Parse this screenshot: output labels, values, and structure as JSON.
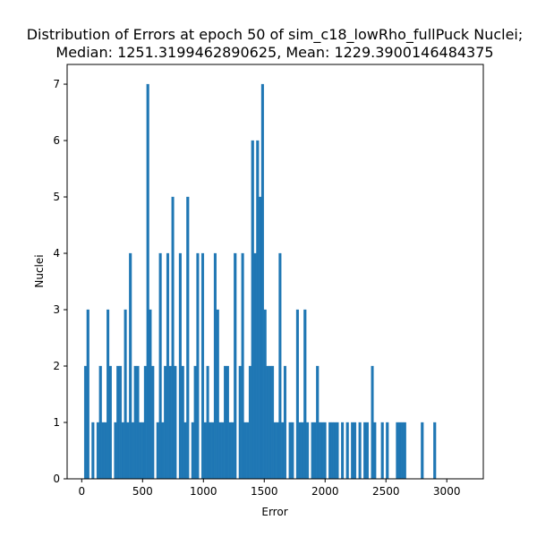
{
  "chart_data": {
    "type": "bar",
    "title_lines": [
      "Distribution of Errors at epoch 50 of sim_c18_lowRho_fullPuck Nuclei;",
      "Median: 1251.3199462890625, Mean: 1229.3900146484375"
    ],
    "xlabel": "Error",
    "ylabel": "Nuclei",
    "xlim": [
      -120,
      3300
    ],
    "ylim": [
      0,
      7.35
    ],
    "x_ticks": [
      0,
      500,
      1000,
      1500,
      2000,
      2500,
      3000
    ],
    "y_ticks": [
      0,
      1,
      2,
      3,
      4,
      5,
      6,
      7
    ],
    "bar_color": "#1f77b4",
    "bin_start": 0,
    "bin_width": 20.5,
    "counts": [
      0,
      2,
      3,
      0,
      1,
      0,
      1,
      2,
      1,
      1,
      3,
      2,
      0,
      1,
      2,
      2,
      1,
      3,
      1,
      4,
      1,
      2,
      2,
      1,
      1,
      2,
      7,
      3,
      2,
      0,
      1,
      4,
      1,
      2,
      4,
      2,
      5,
      2,
      0,
      4,
      2,
      1,
      5,
      0,
      1,
      2,
      4,
      0,
      4,
      1,
      2,
      1,
      1,
      4,
      3,
      1,
      1,
      2,
      2,
      1,
      1,
      4,
      0,
      2,
      4,
      1,
      1,
      2,
      6,
      4,
      6,
      5,
      7,
      3,
      2,
      2,
      2,
      1,
      1,
      4,
      1,
      2,
      0,
      1,
      1,
      0,
      3,
      1,
      1,
      3,
      1,
      0,
      1,
      1,
      2,
      1,
      1,
      1,
      0,
      1,
      1,
      1,
      1,
      0,
      1,
      0,
      1,
      0,
      1,
      1,
      0,
      1,
      0,
      1,
      1,
      0,
      2,
      1,
      0,
      0,
      1,
      0,
      1,
      0,
      0,
      0,
      1,
      1,
      1,
      1,
      0,
      0,
      0,
      0,
      0,
      0,
      1,
      0,
      0,
      0,
      0,
      1
    ]
  }
}
